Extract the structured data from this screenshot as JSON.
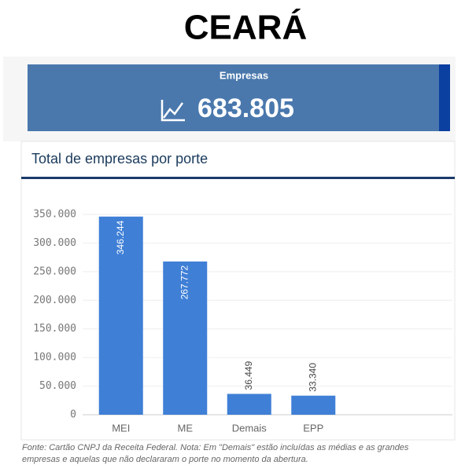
{
  "header": {
    "title": "CEARÁ"
  },
  "kpi": {
    "label": "Empresas",
    "value": "683.805"
  },
  "chart_data": {
    "type": "bar",
    "title": "Total de empresas por porte",
    "categories": [
      "MEI",
      "ME",
      "Demais",
      "EPP"
    ],
    "values": [
      346244,
      267772,
      36449,
      33340
    ],
    "value_labels": [
      "346.244",
      "267.772",
      "36.449",
      "33.340"
    ],
    "color": "#3f7fd6",
    "ylim": [
      0,
      350000
    ],
    "yticks": [
      0,
      {
        "value": 50000,
        "label": "50.000"
      },
      {
        "value": 100000,
        "label": "100.000"
      },
      {
        "value": 150000,
        "label": "150.000"
      },
      {
        "value": 200000,
        "label": "200.000"
      },
      {
        "value": 250000,
        "label": "250.000"
      },
      {
        "value": 300000,
        "label": "300.000"
      },
      {
        "value": 350000,
        "label": "350.000"
      }
    ],
    "grid": true,
    "note": [
      "Fonte: Cartão CNPJ da Receita Federal. Nota: Em \"Demais\" estão incluídas as médias e as grandes",
      "empresas e aquelas que não declararam o porte no momento da abertura."
    ]
  }
}
